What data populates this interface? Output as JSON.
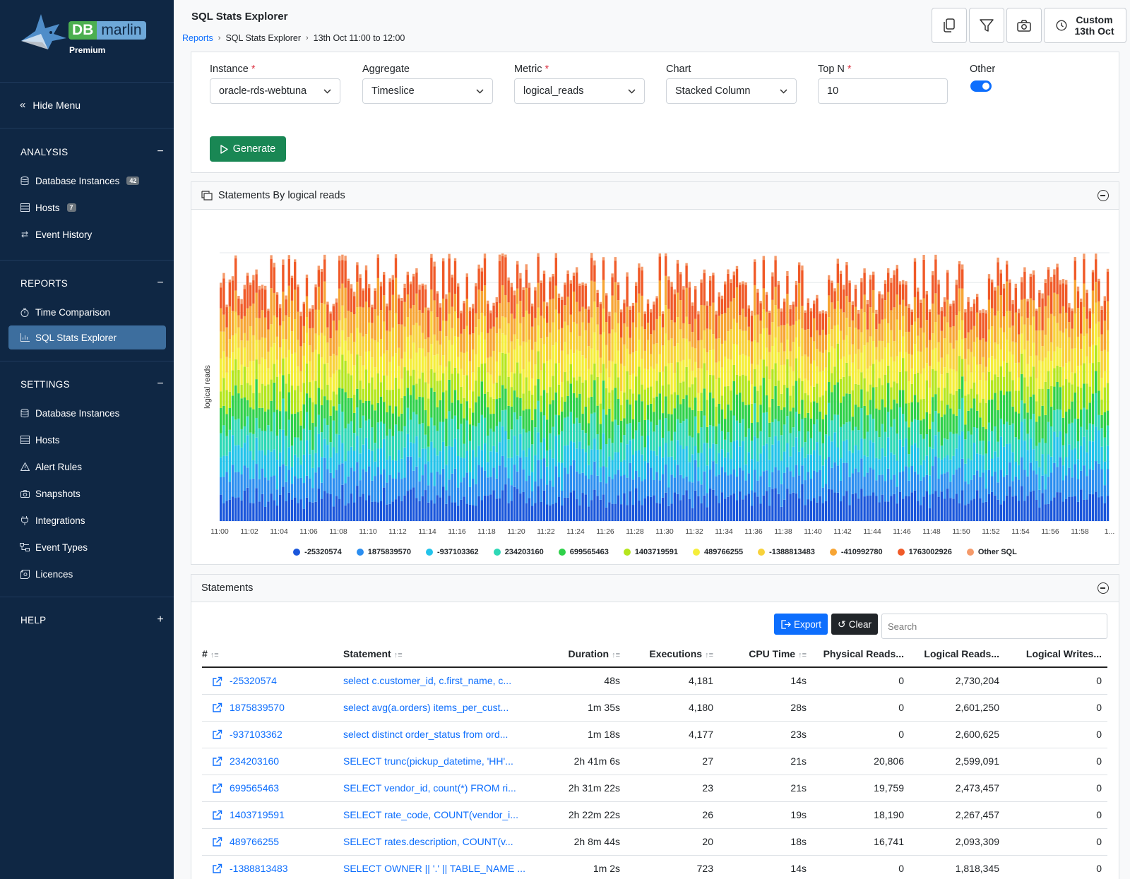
{
  "app": {
    "brand_db": "DB",
    "brand_name": "marlin",
    "tier": "Premium",
    "accent": "#0d6efd",
    "sidebar_bg": "#0f2744"
  },
  "sidebar": {
    "hide_menu": "Hide Menu",
    "sections": [
      {
        "title": "ANALYSIS",
        "items": [
          {
            "label": "Database Instances",
            "badge": "42",
            "icon": "database-icon"
          },
          {
            "label": "Hosts",
            "badge": "7",
            "icon": "server-icon"
          },
          {
            "label": "Event History",
            "icon": "arrows-icon"
          }
        ]
      },
      {
        "title": "REPORTS",
        "items": [
          {
            "label": "Time Comparison",
            "icon": "stopwatch-icon"
          },
          {
            "label": "SQL Stats Explorer",
            "icon": "bar-chart-icon",
            "active": true
          }
        ]
      },
      {
        "title": "SETTINGS",
        "items": [
          {
            "label": "Database Instances",
            "icon": "database-icon"
          },
          {
            "label": "Hosts",
            "icon": "server-icon"
          },
          {
            "label": "Alert Rules",
            "icon": "warning-icon"
          },
          {
            "label": "Snapshots",
            "icon": "camera-icon"
          },
          {
            "label": "Integrations",
            "icon": "plug-icon"
          },
          {
            "label": "Event Types",
            "icon": "diagram-icon"
          },
          {
            "label": "Licences",
            "icon": "certificate-icon"
          }
        ]
      },
      {
        "title": "HELP",
        "items": []
      }
    ]
  },
  "header": {
    "title": "SQL Stats Explorer",
    "breadcrumb": [
      "Reports",
      "SQL Stats Explorer",
      "13th Oct 11:00 to 12:00"
    ],
    "time_button": [
      "Custom",
      "13th Oct"
    ]
  },
  "filters": {
    "instance": {
      "label": "Instance",
      "value": "oracle-rds-webtuna"
    },
    "aggregate": {
      "label": "Aggregate",
      "value": "Timeslice"
    },
    "metric": {
      "label": "Metric",
      "value": "logical_reads"
    },
    "chart": {
      "label": "Chart",
      "value": "Stacked Column"
    },
    "topn": {
      "label": "Top N",
      "value": "10"
    },
    "other": {
      "label": "Other",
      "checked": true
    },
    "generate": "Generate"
  },
  "chart_panel": {
    "title": "Statements By logical reads"
  },
  "chart_data": {
    "type": "bar",
    "stacked": true,
    "ylabel": "logical reads",
    "x_ticks": [
      "11:00",
      "11:02",
      "11:04",
      "11:06",
      "11:08",
      "11:10",
      "11:12",
      "11:14",
      "11:16",
      "11:18",
      "11:20",
      "11:22",
      "11:24",
      "11:26",
      "11:28",
      "11:30",
      "11:32",
      "11:34",
      "11:36",
      "11:38",
      "11:40",
      "11:42",
      "11:44",
      "11:46",
      "11:48",
      "11:50",
      "11:52",
      "11:54",
      "11:56",
      "11:58",
      "1..."
    ],
    "series": [
      {
        "name": "-25320574",
        "color": "#1a56db"
      },
      {
        "name": "1875839570",
        "color": "#2b8ef0"
      },
      {
        "name": "-937103362",
        "color": "#22c3ea"
      },
      {
        "name": "234203160",
        "color": "#2ed8b6"
      },
      {
        "name": "699565463",
        "color": "#2fd14a"
      },
      {
        "name": "1403719591",
        "color": "#b5e61d"
      },
      {
        "name": "489766255",
        "color": "#f5ee3a"
      },
      {
        "name": "-1388813483",
        "color": "#f8d23a"
      },
      {
        "name": "-410992780",
        "color": "#f7a534"
      },
      {
        "name": "1763002926",
        "color": "#f05a28"
      },
      {
        "name": "Other SQL",
        "color": "#f59a6a"
      }
    ],
    "grid": true
  },
  "statements": {
    "title": "Statements",
    "export": "Export",
    "clear": "Clear",
    "search_placeholder": "Search",
    "columns": [
      "#",
      "Statement",
      "Duration",
      "Executions",
      "CPU Time",
      "Physical Reads...",
      "Logical Reads...",
      "Logical Writes..."
    ],
    "rows": [
      [
        "-25320574",
        "select c.customer_id, c.first_name, c...",
        "48s",
        "4,181",
        "14s",
        "0",
        "2,730,204",
        "0"
      ],
      [
        "1875839570",
        "select avg(a.orders) items_per_cust...",
        "1m 35s",
        "4,180",
        "28s",
        "0",
        "2,601,250",
        "0"
      ],
      [
        "-937103362",
        "select distinct order_status from ord...",
        "1m 18s",
        "4,177",
        "23s",
        "0",
        "2,600,625",
        "0"
      ],
      [
        "234203160",
        "SELECT trunc(pickup_datetime, 'HH'...",
        "2h 41m 6s",
        "27",
        "21s",
        "20,806",
        "2,599,091",
        "0"
      ],
      [
        "699565463",
        "SELECT vendor_id, count(*) FROM ri...",
        "2h 31m 22s",
        "23",
        "21s",
        "19,759",
        "2,473,457",
        "0"
      ],
      [
        "1403719591",
        "SELECT rate_code, COUNT(vendor_i...",
        "2h 22m 22s",
        "26",
        "19s",
        "18,190",
        "2,267,457",
        "0"
      ],
      [
        "489766255",
        "SELECT rates.description, COUNT(v...",
        "2h 8m 44s",
        "20",
        "18s",
        "16,741",
        "2,093,309",
        "0"
      ],
      [
        "-1388813483",
        "SELECT OWNER || '.' || TABLE_NAME ...",
        "1m 2s",
        "723",
        "14s",
        "0",
        "1,818,345",
        "0"
      ]
    ]
  }
}
